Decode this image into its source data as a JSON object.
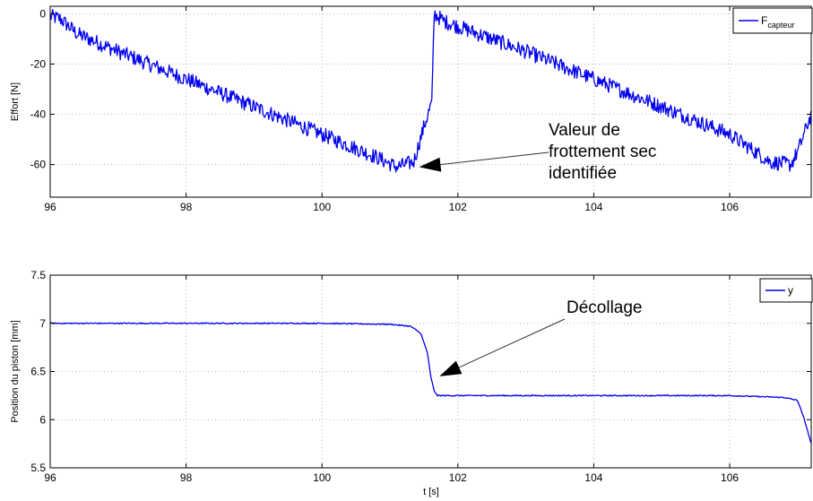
{
  "chart_data": [
    {
      "type": "line",
      "xlabel": "",
      "ylabel": "Effort [N]",
      "xlim": [
        96,
        107.2
      ],
      "ylim": [
        -73,
        3
      ],
      "xticks": [
        96,
        98,
        100,
        102,
        104,
        106
      ],
      "yticks": [
        0,
        -20,
        -40,
        -60
      ],
      "grid": true,
      "legend": {
        "position": "top-right",
        "entries": [
          {
            "base": "F",
            "sub": "capteur"
          }
        ]
      },
      "series": [
        {
          "name": "F_capteur",
          "color": "#0000ee",
          "noise": 3,
          "x": [
            96.0,
            96.15,
            96.4,
            97.0,
            98.0,
            99.0,
            100.0,
            100.8,
            101.1,
            101.35,
            101.5,
            101.62,
            101.65,
            101.8,
            102.5,
            103.0,
            104.0,
            105.0,
            106.0,
            106.6,
            106.9,
            107.0,
            107.2
          ],
          "y": [
            -1,
            -2,
            -8,
            -15,
            -26,
            -37,
            -48,
            -57,
            -61,
            -59,
            -45,
            -35,
            0,
            -3,
            -10,
            -15,
            -26,
            -37,
            -48,
            -59,
            -60,
            -55,
            -40
          ]
        }
      ],
      "annotations": [
        {
          "lines": [
            "Valeur de",
            "frottement sec",
            "identifiée"
          ],
          "point_to": [
            101.35,
            -61
          ]
        }
      ]
    },
    {
      "type": "line",
      "xlabel": "t [s]",
      "ylabel": "Position du piston [mm]",
      "xlim": [
        96,
        107.2
      ],
      "ylim": [
        5.5,
        7.5
      ],
      "xticks": [
        96,
        98,
        100,
        102,
        104,
        106
      ],
      "yticks": [
        5.5,
        6,
        6.5,
        7,
        7.5
      ],
      "grid": true,
      "legend": {
        "position": "top-right",
        "entries": [
          {
            "base": "y",
            "sub": ""
          }
        ]
      },
      "series": [
        {
          "name": "y",
          "color": "#0000ee",
          "noise": 0.006,
          "x": [
            96.0,
            98.0,
            100.0,
            101.0,
            101.3,
            101.45,
            101.55,
            101.6,
            101.65,
            101.7,
            102.0,
            104.0,
            106.0,
            106.8,
            107.0,
            107.1,
            107.2
          ],
          "y": [
            7.0,
            7.0,
            7.0,
            6.99,
            6.97,
            6.9,
            6.7,
            6.45,
            6.3,
            6.25,
            6.25,
            6.25,
            6.25,
            6.23,
            6.2,
            6.0,
            5.75
          ]
        }
      ],
      "annotations": [
        {
          "lines": [
            "Décollage"
          ],
          "point_to": [
            101.65,
            6.45
          ]
        }
      ]
    }
  ]
}
